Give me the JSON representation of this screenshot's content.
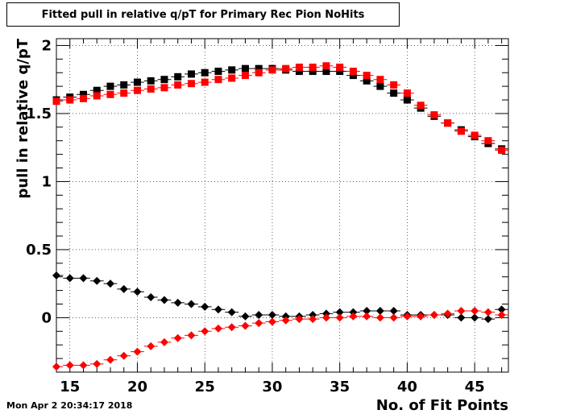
{
  "title": "Fitted pull in relative q/pT for Primary Rec Pion NoHits",
  "timestamp": "Mon Apr  2 20:34:17 2018",
  "chart_data": {
    "type": "scatter",
    "xlabel": "No. of Fit Points",
    "ylabel": "pull in relative q/pT",
    "xlim": [
      14,
      47.5
    ],
    "ylim": [
      -0.4,
      2.05
    ],
    "x_ticks": [
      "15",
      "20",
      "25",
      "30",
      "35",
      "40",
      "45"
    ],
    "y_ticks": [
      "0",
      "0.5",
      "1",
      "1.5",
      "2"
    ],
    "grid": true,
    "colors": {
      "black": "#000000",
      "red": "#ff0000"
    },
    "series": [
      {
        "marker": "square",
        "color": "#000000",
        "x": [
          14,
          15,
          16,
          17,
          18,
          19,
          20,
          21,
          22,
          23,
          24,
          25,
          26,
          27,
          28,
          29,
          30,
          31,
          32,
          33,
          34,
          35,
          36,
          37,
          38,
          39,
          40,
          41,
          42,
          43,
          44,
          45,
          46,
          47
        ],
        "y": [
          1.6,
          1.62,
          1.64,
          1.67,
          1.7,
          1.71,
          1.73,
          1.74,
          1.75,
          1.77,
          1.79,
          1.8,
          1.81,
          1.82,
          1.83,
          1.83,
          1.83,
          1.82,
          1.81,
          1.81,
          1.81,
          1.81,
          1.78,
          1.74,
          1.7,
          1.65,
          1.6,
          1.54,
          1.48,
          1.43,
          1.38,
          1.33,
          1.28,
          1.24
        ]
      },
      {
        "marker": "square",
        "color": "#ff0000",
        "x": [
          14,
          15,
          16,
          17,
          18,
          19,
          20,
          21,
          22,
          23,
          24,
          25,
          26,
          27,
          28,
          29,
          30,
          31,
          32,
          33,
          34,
          35,
          36,
          37,
          38,
          39,
          40,
          41,
          42,
          43,
          44,
          45,
          46,
          47
        ],
        "y": [
          1.59,
          1.6,
          1.61,
          1.63,
          1.64,
          1.65,
          1.67,
          1.68,
          1.69,
          1.71,
          1.72,
          1.73,
          1.75,
          1.76,
          1.78,
          1.8,
          1.82,
          1.83,
          1.84,
          1.84,
          1.85,
          1.84,
          1.81,
          1.78,
          1.75,
          1.71,
          1.65,
          1.56,
          1.49,
          1.43,
          1.37,
          1.34,
          1.3,
          1.23
        ]
      },
      {
        "marker": "diamond",
        "color": "#000000",
        "x": [
          14,
          15,
          16,
          17,
          18,
          19,
          20,
          21,
          22,
          23,
          24,
          25,
          26,
          27,
          28,
          29,
          30,
          31,
          32,
          33,
          34,
          35,
          36,
          37,
          38,
          39,
          40,
          41,
          42,
          43,
          44,
          45,
          46,
          47
        ],
        "y": [
          0.31,
          0.29,
          0.29,
          0.27,
          0.25,
          0.21,
          0.19,
          0.15,
          0.13,
          0.11,
          0.1,
          0.08,
          0.06,
          0.04,
          0.01,
          0.02,
          0.02,
          0.01,
          0.01,
          0.02,
          0.03,
          0.04,
          0.04,
          0.05,
          0.05,
          0.05,
          0.02,
          0.02,
          0.02,
          0.02,
          0.0,
          0.0,
          -0.01,
          0.06
        ]
      },
      {
        "marker": "diamond",
        "color": "#ff0000",
        "x": [
          14,
          15,
          16,
          17,
          18,
          19,
          20,
          21,
          22,
          23,
          24,
          25,
          26,
          27,
          28,
          29,
          30,
          31,
          32,
          33,
          34,
          35,
          36,
          37,
          38,
          39,
          40,
          41,
          42,
          43,
          44,
          45,
          46,
          47
        ],
        "y": [
          -0.36,
          -0.35,
          -0.35,
          -0.34,
          -0.31,
          -0.28,
          -0.25,
          -0.21,
          -0.18,
          -0.15,
          -0.13,
          -0.1,
          -0.08,
          -0.07,
          -0.06,
          -0.04,
          -0.03,
          -0.02,
          -0.01,
          -0.01,
          0.0,
          0.0,
          0.01,
          0.01,
          0.0,
          0.0,
          0.01,
          0.01,
          0.02,
          0.03,
          0.05,
          0.05,
          0.04,
          0.02
        ]
      }
    ]
  }
}
